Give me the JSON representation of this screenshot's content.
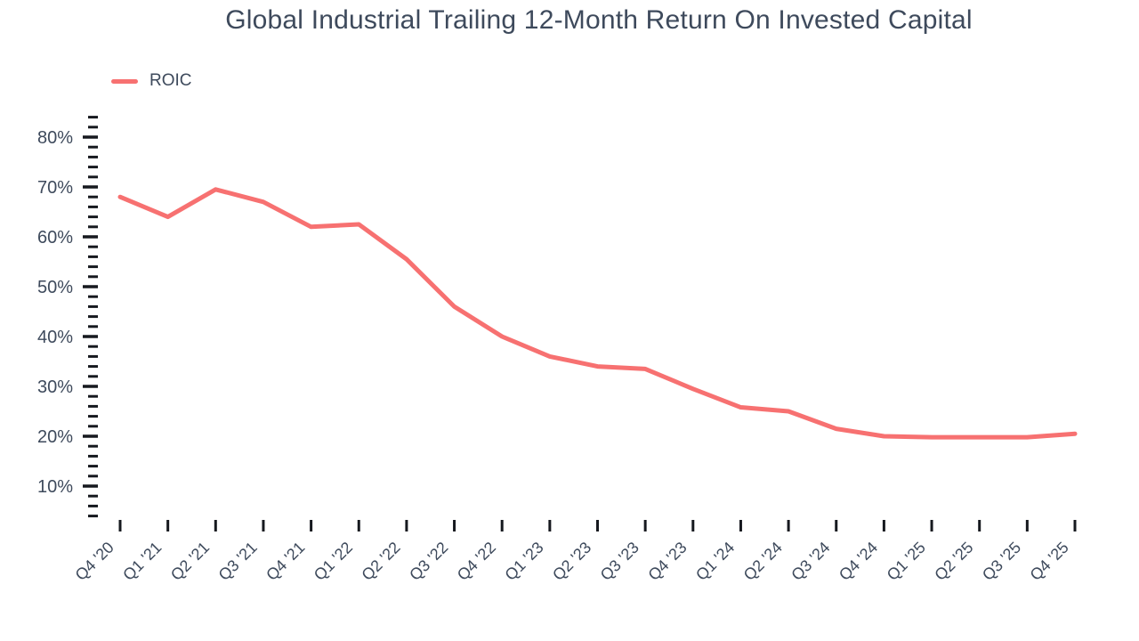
{
  "colors": {
    "line": "#f77171",
    "text": "#3e4a5c",
    "tick": "#16191f",
    "background": "#ffffff"
  },
  "legend": {
    "position": "top-left"
  },
  "chart_data": {
    "type": "line",
    "title": "Global Industrial Trailing 12-Month Return On Invested Capital",
    "categories": [
      "Q4 '20",
      "Q1 '21",
      "Q2 '21",
      "Q3 '21",
      "Q4 '21",
      "Q1 '22",
      "Q2 '22",
      "Q3 '22",
      "Q4 '22",
      "Q1 '23",
      "Q2 '23",
      "Q3 '23",
      "Q4 '23",
      "Q1 '24",
      "Q2 '24",
      "Q3 '24",
      "Q4 '24",
      "Q1 '25",
      "Q2 '25",
      "Q3 '25",
      "Q4 '25"
    ],
    "series": [
      {
        "name": "ROIC",
        "color": "#f77171",
        "values": [
          68,
          64,
          69.5,
          67,
          62,
          62.5,
          55.5,
          46,
          40,
          36,
          34,
          33.5,
          29.5,
          25.8,
          25,
          21.5,
          20,
          19.8,
          19.8,
          19.8,
          20.5
        ]
      }
    ],
    "xlabel": "",
    "ylabel": "",
    "ylim": [
      4,
      84
    ],
    "ytick_major_step": 10,
    "ytick_minor_step": 2,
    "ytick_suffix": "%",
    "ytick_labeled_range": [
      10,
      80
    ],
    "x_label_rotation": -45,
    "grid": false,
    "legend_position": "top-left"
  }
}
